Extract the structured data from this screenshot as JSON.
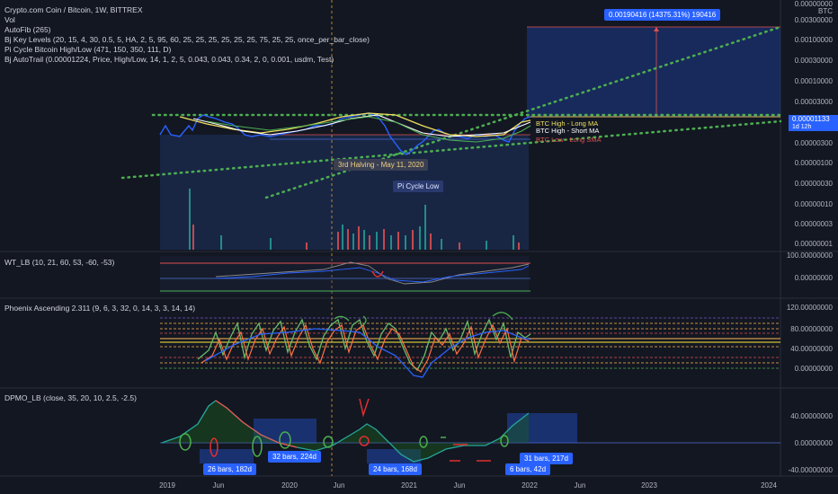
{
  "header": {
    "symbol_line": "Crypto.com Coin / Bitcoin, 1W, BITTREX",
    "indicators": [
      "Vol",
      "AutoFib (265)",
      "Bj Key Levels (20, 15, 4, 30, 0.5, 5, HA, 2, 5, 95, 60, 25, 25, 25, 25, 25, 25, 75, 25, 25, once_per_bar_close)",
      "Pi Cycle Bitcoin High/Low (471, 150, 350, 111, D)",
      "Bj AutoTrail (0.00001224, Price, High/Low, 14, 1, 2, 5, 0.043, 0.043, 0.34, 2, 0, 0.001, usdm, Test)"
    ]
  },
  "price_axis": {
    "currency": "BTC",
    "labels": [
      "0.00000000",
      "0.00300000",
      "0.00100000",
      "0.00030000",
      "0.00010000",
      "0.00003000",
      "0.00001000",
      "0.00000300",
      "0.00000100",
      "0.00000030",
      "0.00000010",
      "0.00000003",
      "0.00000001"
    ],
    "current_price": "0.00001133",
    "current_sub": "1d 12h"
  },
  "annotations": {
    "measure_box": "0.00190416 (14375.31%) 190416",
    "halving": "3rd Halving - May 11, 2020",
    "pi_cycle_low": "Pi Cycle Low",
    "btc_high_long": "BTC High - Long MA",
    "btc_high_short": "BTC High - Short MA",
    "btc_low_long": "BTC Low - Long SMA"
  },
  "panes": {
    "wt": {
      "title": "WT_LB (10, 21, 60, 53, -60, -53)",
      "labels": [
        "100.00000000",
        "0.00000000"
      ]
    },
    "phoenix": {
      "title": "Phoenix Ascending 2.311 (9, 6, 3, 32, 0, 14, 3, 3, 14, 14)",
      "labels": [
        "120.00000000",
        "80.00000000",
        "40.00000000",
        "0.00000000"
      ]
    },
    "dpmo": {
      "title": "DPMO_LB (close, 35, 20, 10, 2.5, -2.5)",
      "labels": [
        "40.00000000",
        "0.00000000",
        "-40.00000000"
      ],
      "bar_tags": [
        "26 bars, 182d",
        "32 bars, 224d",
        "24 bars, 168d",
        "6 bars, 42d",
        "31 bars, 217d"
      ]
    }
  },
  "time_axis": [
    "2019",
    "Jun",
    "2020",
    "Jun",
    "2021",
    "Jun",
    "2022",
    "Jun",
    "2023",
    "2024"
  ],
  "colors": {
    "background": "#131722",
    "accent_blue": "#2962ff",
    "green_dots": "#4caf50",
    "halving_line": "#e0a030"
  }
}
